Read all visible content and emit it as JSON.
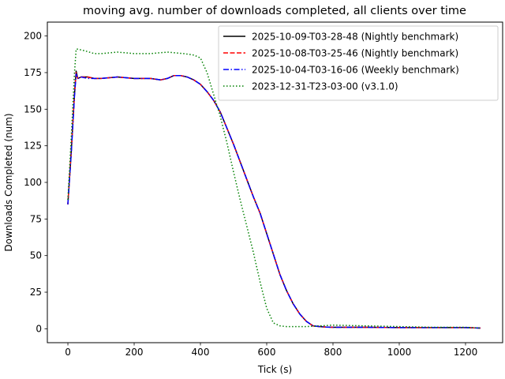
{
  "chart_data": {
    "type": "line",
    "title": "moving avg. number of downloads completed, all clients over time",
    "xlabel": "Tick (s)",
    "ylabel": "Downloads Completed (num)",
    "xlim": [
      -62,
      1312
    ],
    "ylim": [
      -9.5,
      209.5
    ],
    "xticks": [
      0,
      200,
      400,
      600,
      800,
      1000,
      1200
    ],
    "yticks": [
      0,
      25,
      50,
      75,
      100,
      125,
      150,
      175,
      200
    ],
    "grid": false,
    "legend_position": "top-right",
    "series": [
      {
        "name": "2025-10-09-T03-28-48 (Nightly benchmark)",
        "color": "#000000",
        "dash": "solid",
        "x": [
          0,
          10,
          20,
          25,
          30,
          40,
          60,
          80,
          100,
          150,
          200,
          250,
          280,
          300,
          320,
          340,
          360,
          380,
          400,
          420,
          440,
          460,
          480,
          500,
          520,
          540,
          560,
          580,
          600,
          620,
          640,
          660,
          680,
          700,
          720,
          740,
          760,
          780,
          800,
          900,
          1000,
          1100,
          1200,
          1245
        ],
        "y": [
          85,
          120,
          160,
          176,
          171,
          172,
          172,
          171,
          171,
          172,
          171,
          171,
          170,
          171,
          173,
          173,
          172,
          170,
          167,
          162,
          156,
          148,
          137,
          126,
          114,
          102,
          90,
          79,
          65,
          51,
          37,
          26,
          17,
          10,
          5,
          2,
          1.5,
          1.2,
          1,
          1,
          0.8,
          0.8,
          0.8,
          0.5
        ]
      },
      {
        "name": "2025-10-08-T03-25-46 (Nightly benchmark)",
        "color": "#ff0000",
        "dash": "dashed",
        "x": [
          0,
          10,
          20,
          25,
          30,
          40,
          60,
          80,
          100,
          150,
          200,
          250,
          280,
          300,
          320,
          340,
          360,
          380,
          400,
          420,
          440,
          460,
          480,
          500,
          520,
          540,
          560,
          580,
          600,
          620,
          640,
          660,
          680,
          700,
          720,
          740,
          760,
          780,
          800,
          900,
          1000,
          1100,
          1200,
          1245
        ],
        "y": [
          85,
          121,
          161,
          175,
          171,
          172,
          172,
          171,
          171,
          172,
          171,
          171,
          170,
          171,
          173,
          173,
          172,
          170,
          167,
          162,
          156,
          148,
          137,
          126,
          114,
          102,
          90,
          79,
          65,
          51,
          37,
          26,
          17,
          10,
          5,
          2,
          1.5,
          1.2,
          1,
          1,
          0.8,
          0.8,
          0.8,
          0.5
        ]
      },
      {
        "name": "2025-10-04-T03-16-06 (Weekly benchmark)",
        "color": "#0000ff",
        "dash": "dashdot",
        "x": [
          0,
          10,
          20,
          25,
          30,
          40,
          60,
          80,
          100,
          150,
          200,
          250,
          280,
          300,
          320,
          340,
          360,
          380,
          400,
          420,
          440,
          460,
          480,
          500,
          520,
          540,
          560,
          580,
          600,
          620,
          640,
          660,
          680,
          700,
          720,
          740,
          760,
          780,
          800,
          900,
          1000,
          1100,
          1200,
          1245
        ],
        "y": [
          85,
          119,
          159,
          174,
          171,
          172,
          171,
          171,
          171,
          172,
          171,
          171,
          170,
          171,
          173,
          173,
          172,
          170,
          167,
          162,
          156,
          148,
          137,
          126,
          114,
          102,
          90,
          79,
          65,
          51,
          37,
          26,
          17,
          10,
          5,
          2,
          1.5,
          1.2,
          1,
          1,
          0.8,
          0.8,
          0.8,
          0.5
        ]
      },
      {
        "name": "2023-12-31-T23-03-00 (v3.1.0)",
        "color": "#008000",
        "dash": "dotted",
        "x": [
          0,
          10,
          20,
          25,
          30,
          50,
          80,
          100,
          150,
          200,
          250,
          300,
          350,
          380,
          400,
          420,
          440,
          460,
          480,
          500,
          520,
          540,
          560,
          580,
          600,
          620,
          640,
          660,
          680,
          700,
          720,
          760,
          800,
          900,
          1000,
          1100,
          1200,
          1245
        ],
        "y": [
          88,
          130,
          175,
          191,
          191,
          190,
          188,
          188,
          189,
          188,
          188,
          189,
          188,
          187,
          185,
          175,
          160,
          145,
          127,
          107,
          88,
          70,
          52,
          32,
          14,
          4,
          2,
          1.5,
          1.5,
          1.5,
          1.5,
          2,
          2.5,
          2,
          1.5,
          1,
          1,
          0.5
        ]
      }
    ]
  }
}
